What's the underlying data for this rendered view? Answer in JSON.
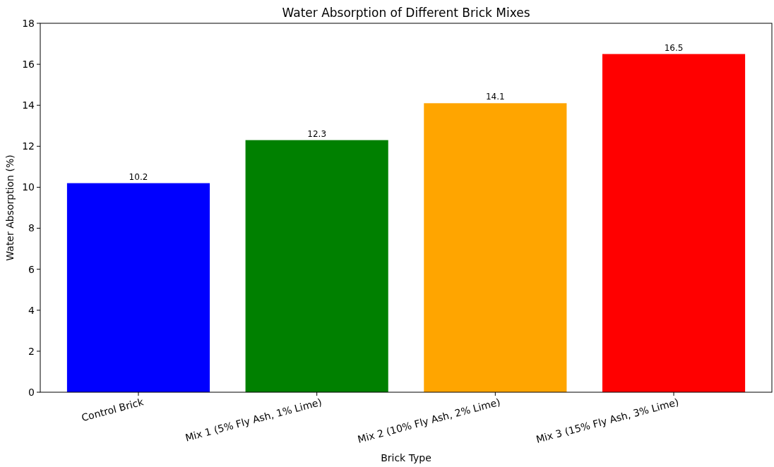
{
  "chart_data": {
    "type": "bar",
    "title": "Water Absorption of Different Brick Mixes",
    "xlabel": "Brick Type",
    "ylabel": "Water Absorption (%)",
    "categories": [
      "Control Brick",
      "Mix 1 (5% Fly Ash, 1% Lime)",
      "Mix 2 (10% Fly Ash, 2% Lime)",
      "Mix 3 (15% Fly Ash, 3% Lime)"
    ],
    "values": [
      10.2,
      12.3,
      14.1,
      16.5
    ],
    "colors": [
      "#0000ff",
      "#008000",
      "#ffa500",
      "#ff0000"
    ],
    "ylim": [
      0,
      18
    ],
    "yticks": [
      0,
      2,
      4,
      6,
      8,
      10,
      12,
      14,
      16,
      18
    ],
    "data_labels": true
  }
}
